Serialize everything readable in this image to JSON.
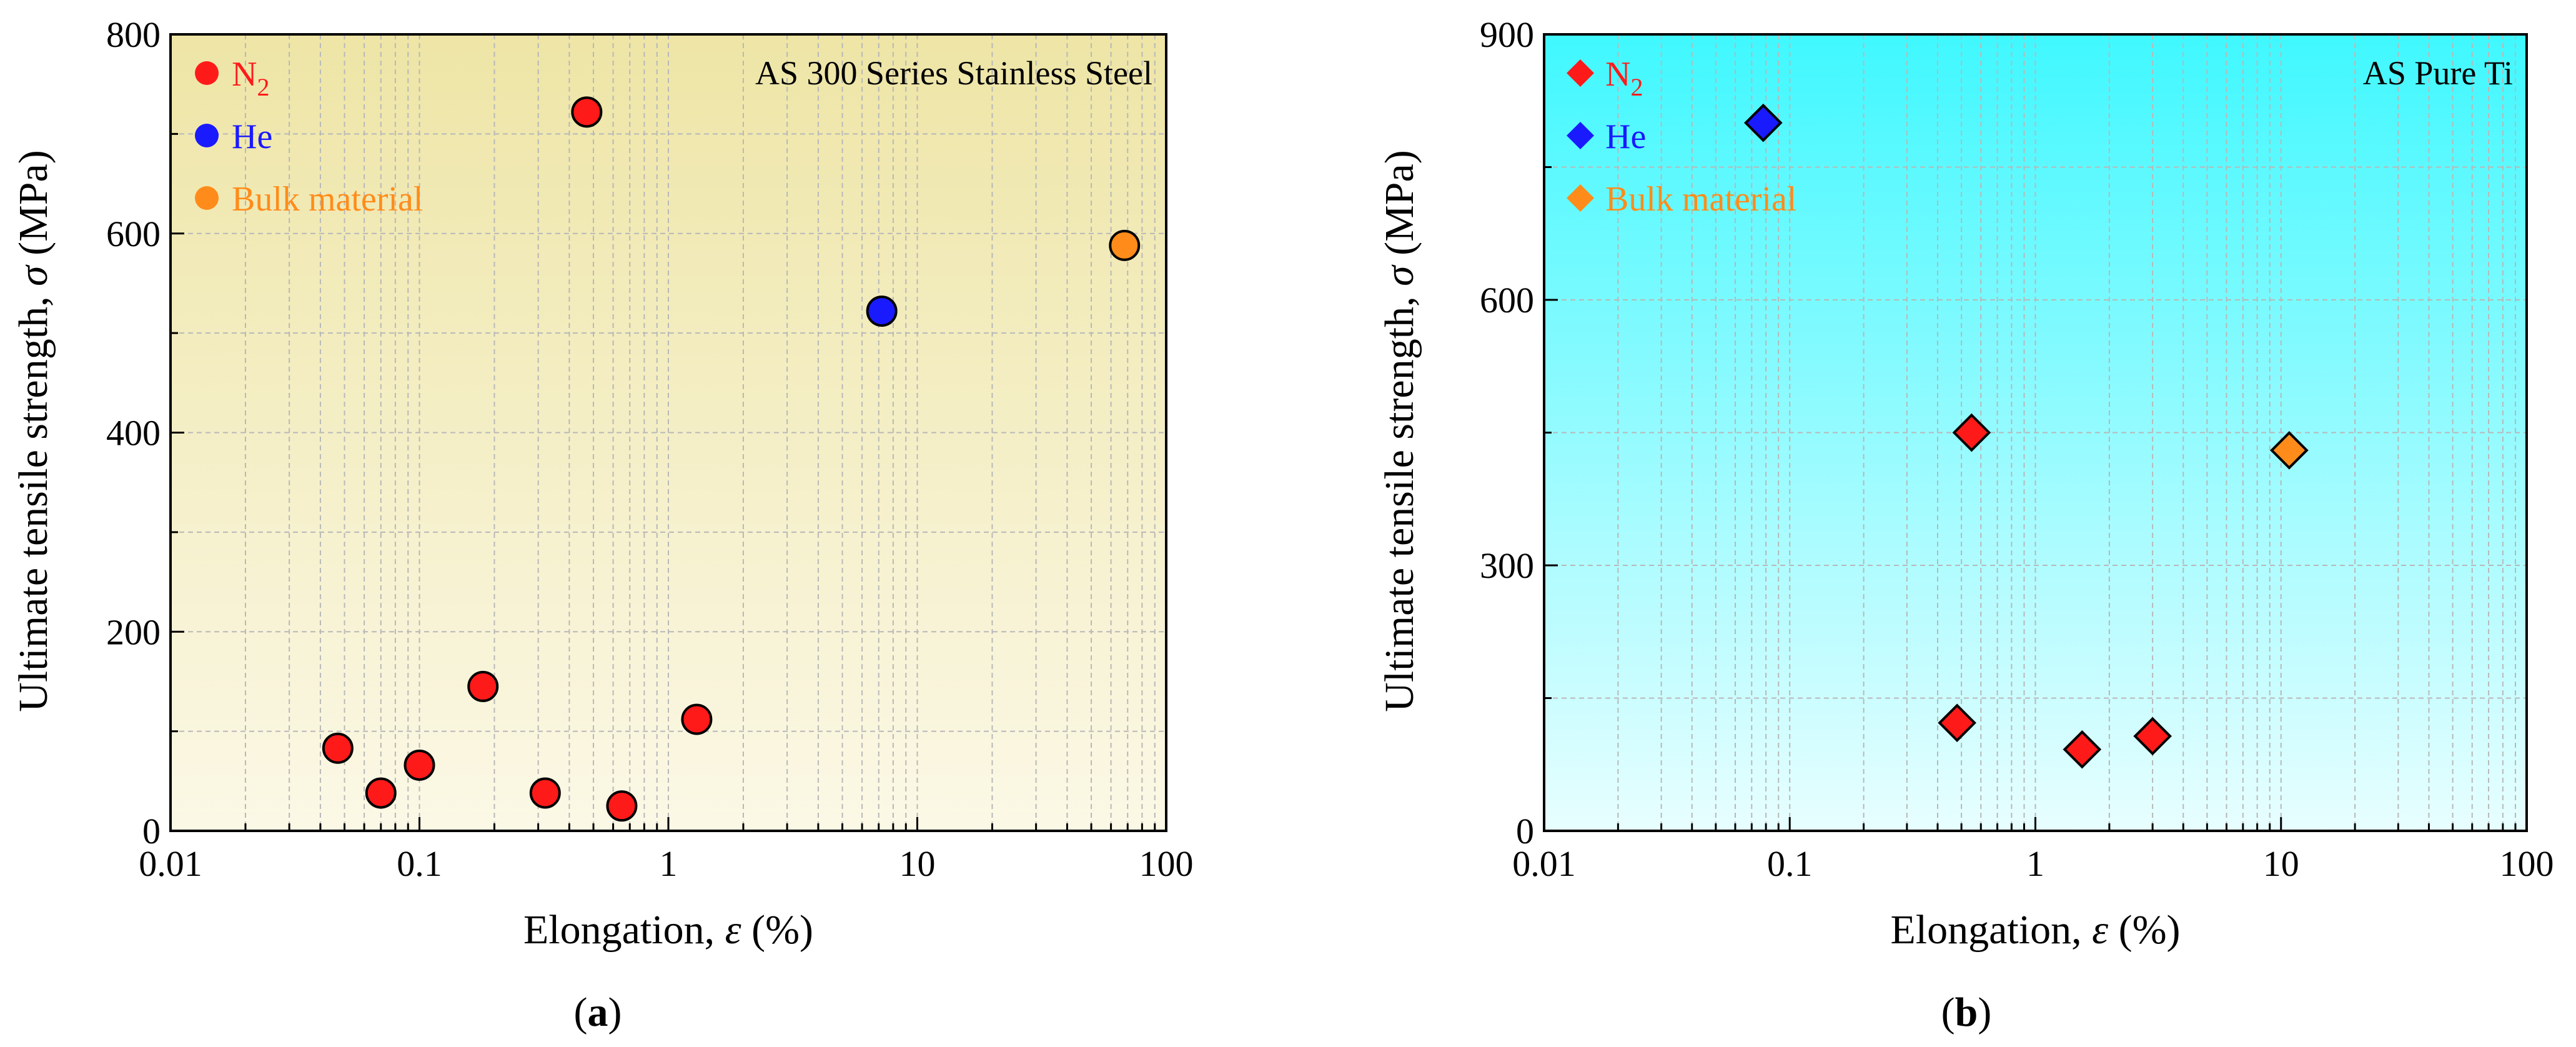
{
  "colors": {
    "n2": "#ff1a1a",
    "he": "#1a1aff",
    "bulk": "#ff8c1a",
    "panel_a_bg_top": "#eee5a6",
    "panel_a_bg_bottom": "#fbf8e6",
    "panel_b_bg_top": "#40f8ff",
    "panel_b_bg_bottom": "#e8feff"
  },
  "chart_data": [
    {
      "type": "scatter",
      "panel_label": "a",
      "title": "AS 300 Series Stainless Steel",
      "xlabel_prefix": "Elongation, ",
      "xlabel_symbol": "ε",
      "xlabel_unit": " (%)",
      "ylabel_prefix": "Ultimate tensile strength, ",
      "ylabel_symbol": "σ",
      "ylabel_unit": " (MPa)",
      "xscale": "log",
      "xlim": [
        0.01,
        100
      ],
      "ylim": [
        0,
        800
      ],
      "xticks": [
        0.01,
        0.1,
        1,
        10,
        100
      ],
      "xtick_labels": [
        "0.01",
        "0.1",
        "1",
        "10",
        "100"
      ],
      "yticks": [
        0,
        200,
        400,
        600,
        800
      ],
      "ytick_labels": [
        "0",
        "200",
        "400",
        "600",
        "800"
      ],
      "grid": true,
      "marker": "circle",
      "legend_position": "top-left",
      "series": [
        {
          "name": "N2",
          "legend_main": "N",
          "legend_sub": "2",
          "color_key": "n2",
          "x": [
            0.047,
            0.07,
            0.1,
            0.18,
            0.32,
            0.47,
            0.65,
            1.3
          ],
          "y": [
            83,
            38,
            66,
            145,
            38,
            722,
            25,
            112
          ]
        },
        {
          "name": "He",
          "legend_main": "He",
          "legend_sub": "",
          "color_key": "he",
          "x": [
            7.2
          ],
          "y": [
            522
          ]
        },
        {
          "name": "Bulk material",
          "legend_main": "Bulk material",
          "legend_sub": "",
          "color_key": "bulk",
          "x": [
            68
          ],
          "y": [
            588
          ]
        }
      ]
    },
    {
      "type": "scatter",
      "panel_label": "b",
      "title": "AS Pure Ti",
      "xlabel_prefix": "Elongation, ",
      "xlabel_symbol": "ε",
      "xlabel_unit": " (%)",
      "ylabel_prefix": "Ultimate tensile strength, ",
      "ylabel_symbol": "σ",
      "ylabel_unit": " (MPa)",
      "xscale": "log",
      "xlim": [
        0.01,
        100
      ],
      "ylim": [
        0,
        900
      ],
      "xticks": [
        0.01,
        0.1,
        1,
        10,
        100
      ],
      "xtick_labels": [
        "0.01",
        "0.1",
        "1",
        "10",
        "100"
      ],
      "yticks": [
        0,
        300,
        600,
        900
      ],
      "ytick_labels": [
        "0",
        "300",
        "600",
        "900"
      ],
      "grid": true,
      "marker": "diamond",
      "legend_position": "top-left",
      "series": [
        {
          "name": "N2",
          "legend_main": "N",
          "legend_sub": "2",
          "color_key": "n2",
          "x": [
            0.48,
            0.55,
            1.55,
            3.0
          ],
          "y": [
            122,
            450,
            92,
            107
          ]
        },
        {
          "name": "He",
          "legend_main": "He",
          "legend_sub": "",
          "color_key": "he",
          "x": [
            0.078
          ],
          "y": [
            800
          ]
        },
        {
          "name": "Bulk material",
          "legend_main": "Bulk material",
          "legend_sub": "",
          "color_key": "bulk",
          "x": [
            10.8
          ],
          "y": [
            430
          ]
        }
      ]
    }
  ]
}
